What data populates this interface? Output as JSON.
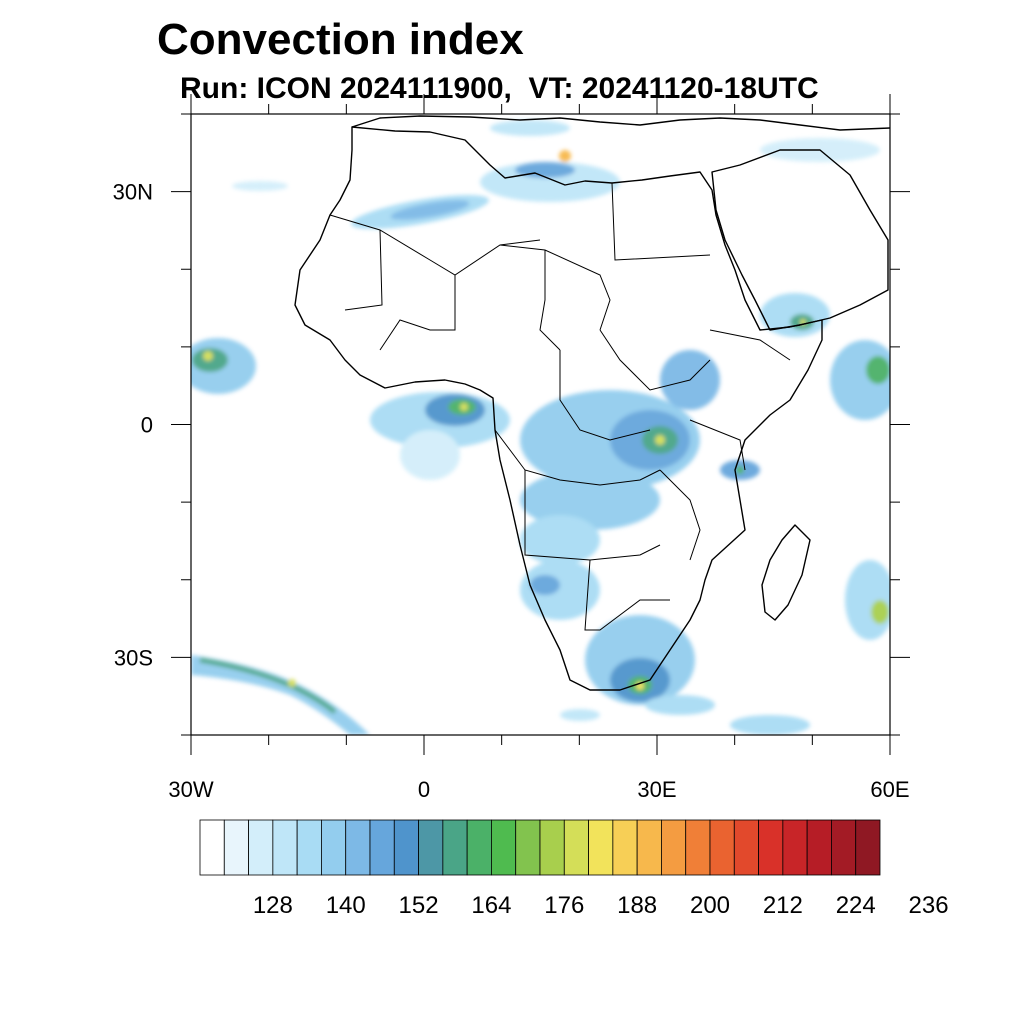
{
  "title": "Convection index",
  "subtitle": "Run: ICON 2024111900,  VT: 20241120-18UTC",
  "map": {
    "region": "Africa",
    "projection": "cylindrical equidistant",
    "lon_range": [
      -30,
      60
    ],
    "lat_range": [
      -40,
      40
    ],
    "lon_ticks": [
      {
        "value": -30,
        "label": "30W"
      },
      {
        "value": 0,
        "label": "0"
      },
      {
        "value": 30,
        "label": "30E"
      },
      {
        "value": 60,
        "label": "60E"
      }
    ],
    "lat_ticks": [
      {
        "value": 30,
        "label": "30N"
      },
      {
        "value": 0,
        "label": "0"
      },
      {
        "value": -30,
        "label": "30S"
      }
    ],
    "minor_lon_step": 10,
    "minor_lat_step": 10
  },
  "colorbar": {
    "colors": [
      "#ffffff",
      "#e8f5fc",
      "#d3eefa",
      "#bfe6f8",
      "#a9dcf4",
      "#93cdee",
      "#7db9e6",
      "#66a6dc",
      "#4f94cc",
      "#4d97a6",
      "#4aa587",
      "#4bb168",
      "#4fbb4f",
      "#82c34e",
      "#a8cf4d",
      "#d4de58",
      "#f2e35b",
      "#f7cf56",
      "#f7b84c",
      "#f49c41",
      "#f07f37",
      "#ea6330",
      "#e2492c",
      "#d93129",
      "#c82528",
      "#b61d26",
      "#a31b25",
      "#8f1823"
    ],
    "tick_labels": [
      "128",
      "140",
      "152",
      "164",
      "176",
      "188",
      "200",
      "212",
      "224",
      "236"
    ],
    "tick_values": [
      128,
      140,
      152,
      164,
      176,
      188,
      200,
      212,
      224,
      236
    ],
    "start_value": 116,
    "step": 4
  }
}
